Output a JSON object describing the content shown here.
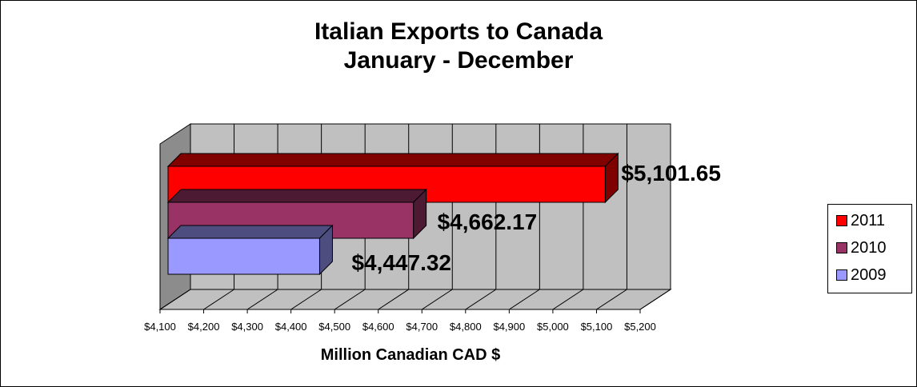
{
  "chart_data": {
    "type": "bar",
    "orientation": "horizontal",
    "title": [
      "Italian Exports to Canada",
      "January - December"
    ],
    "xlabel": "Million Canadian CAD $",
    "ylabel": "",
    "xlim": [
      4100,
      5200
    ],
    "x_ticks": [
      4100,
      4200,
      4300,
      4400,
      4500,
      4600,
      4700,
      4800,
      4900,
      5000,
      5100,
      5200
    ],
    "x_tick_labels": [
      "$4,100",
      "$4,200",
      "$4,300",
      "$4,400",
      "$4,500",
      "$4,600",
      "$4,700",
      "$4,800",
      "$4,900",
      "$5,000",
      "$5,100",
      "$5,200"
    ],
    "grid": true,
    "three_d": true,
    "legend_position": "right",
    "series": [
      {
        "name": "2011",
        "value": 5101.65,
        "label": "$5,101.65",
        "color": "#ff0000",
        "side_color": "#800000"
      },
      {
        "name": "2010",
        "value": 4662.17,
        "label": "$4,662.17",
        "color": "#993366",
        "side_color": "#4d1a33"
      },
      {
        "name": "2009",
        "value": 4447.32,
        "label": "$4,447.32",
        "color": "#9999ff",
        "side_color": "#4d4d80"
      }
    ]
  }
}
